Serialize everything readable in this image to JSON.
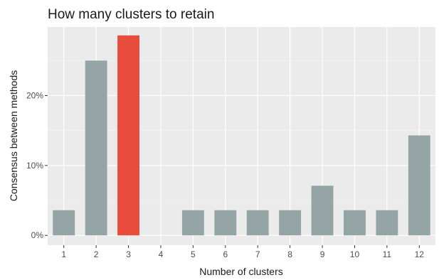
{
  "chart_data": {
    "type": "bar",
    "title": "How many clusters to retain",
    "xlabel": "Number of clusters",
    "ylabel": "Consensus between methods",
    "categories": [
      "1",
      "2",
      "3",
      "4",
      "5",
      "6",
      "7",
      "8",
      "9",
      "10",
      "11",
      "12"
    ],
    "values": [
      3.6,
      25.0,
      28.6,
      0,
      3.6,
      3.6,
      3.6,
      3.6,
      7.1,
      3.6,
      3.6,
      14.3
    ],
    "highlight_category": "3",
    "y_ticks": [
      0,
      10,
      20
    ],
    "y_tick_labels": [
      "0%",
      "10%",
      "20%"
    ],
    "ylim": [
      -1.4,
      29.8
    ],
    "grid": true,
    "colors": {
      "bar": "#95a5a6",
      "highlight": "#e74c3c",
      "panel": "#ebebeb",
      "grid_major": "#ffffff",
      "grid_minor": "#f5f5f5"
    }
  }
}
